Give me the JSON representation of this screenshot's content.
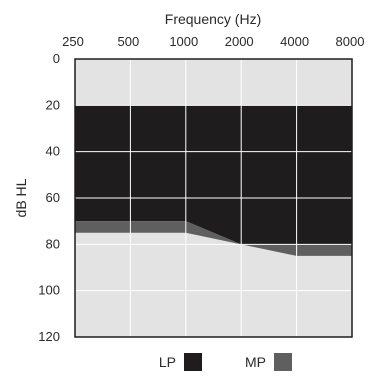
{
  "chart_data": {
    "type": "area",
    "title": "",
    "xlabel": "Frequency (Hz)",
    "ylabel": "dB HL",
    "x_ticks": [
      "250",
      "500",
      "1000",
      "2000",
      "4000",
      "8000"
    ],
    "y_ticks": [
      "0",
      "20",
      "40",
      "60",
      "80",
      "100",
      "120"
    ],
    "ylim": [
      0,
      120
    ],
    "y_inverted": true,
    "x_scale": "log2",
    "grid": true,
    "legend_position": "bottom",
    "background_color": "#e3e3e3",
    "grid_color": "#ffffff",
    "series": [
      {
        "name": "LP",
        "color": "#1e1c1d",
        "x": [
          "250",
          "500",
          "1000",
          "2000",
          "4000",
          "8000"
        ],
        "upper_db": [
          20,
          20,
          20,
          20,
          20,
          20
        ],
        "lower_db": [
          70,
          70,
          70,
          80,
          80,
          80
        ]
      },
      {
        "name": "MP",
        "color": "#5f5f5f",
        "x": [
          "250",
          "500",
          "1000",
          "2000",
          "4000",
          "8000"
        ],
        "upper_db": [
          70,
          70,
          70,
          80,
          80,
          80
        ],
        "lower_db": [
          75,
          75,
          75,
          80,
          85,
          85
        ]
      }
    ]
  }
}
